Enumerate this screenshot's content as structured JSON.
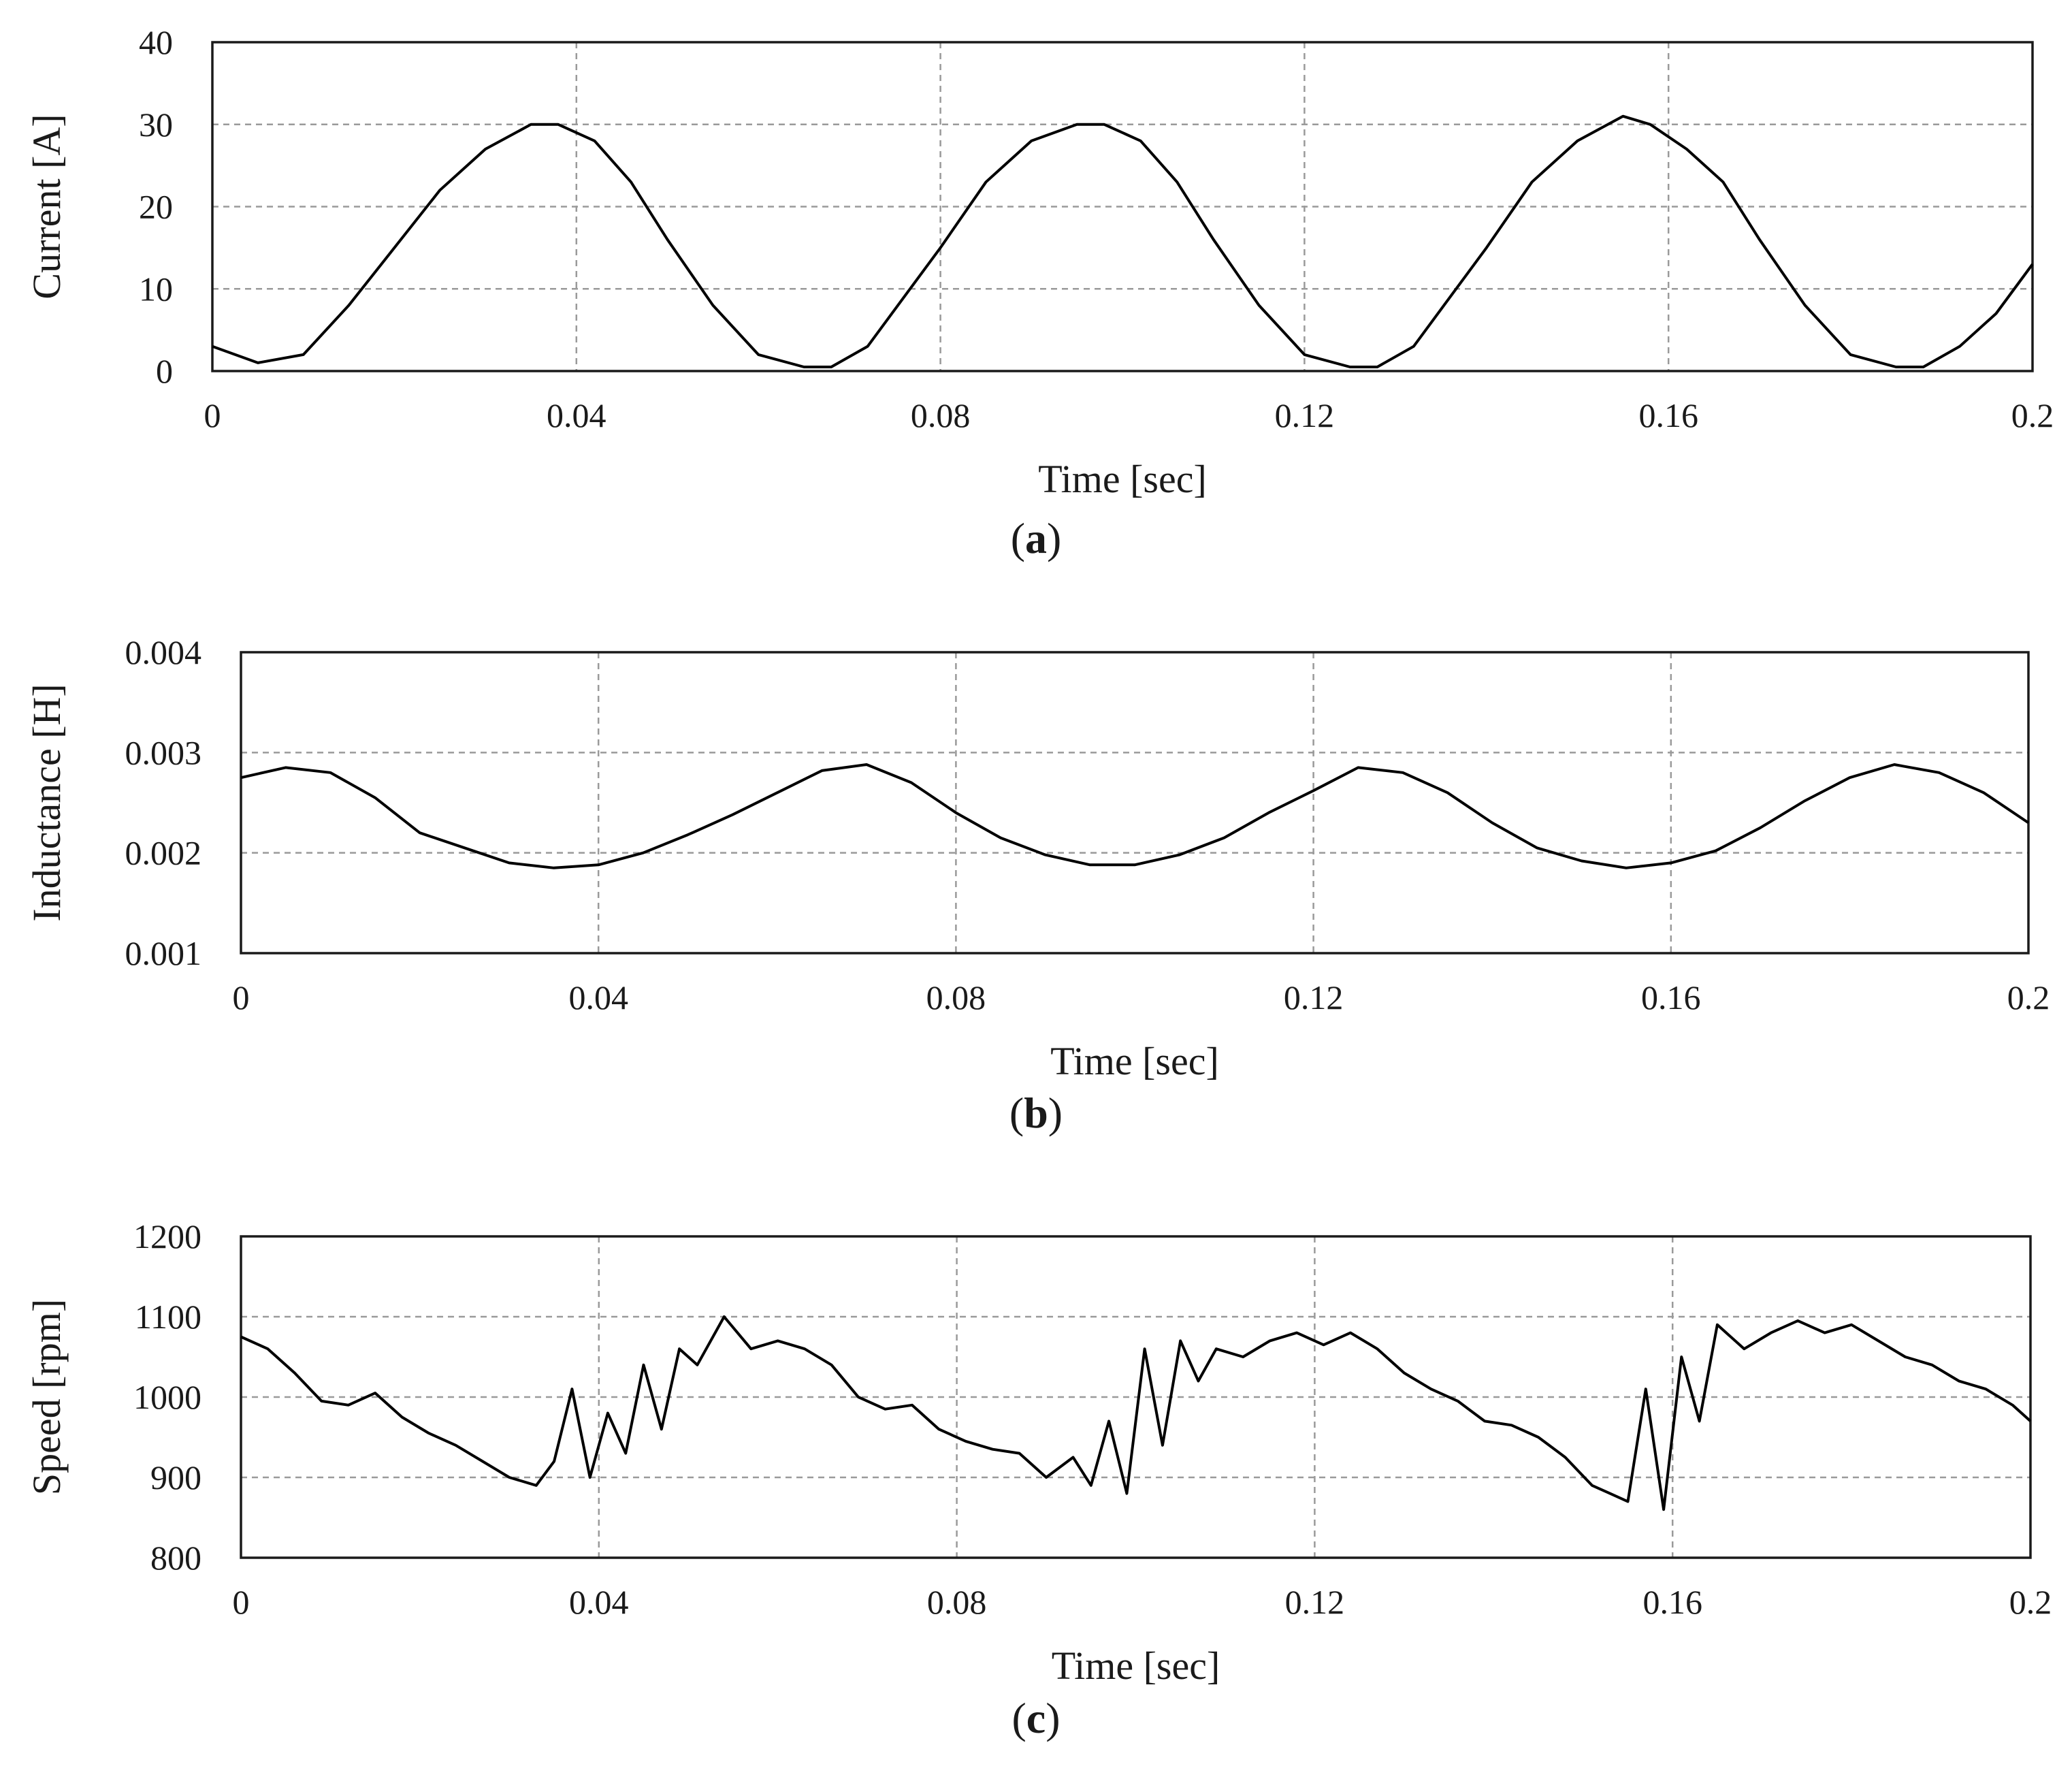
{
  "chart_data": [
    {
      "type": "line",
      "panel": "a",
      "caption_letter": "a",
      "xlabel": "Time [sec]",
      "ylabel": "Current [A]",
      "xlim": [
        0,
        0.2
      ],
      "ylim": [
        0,
        40
      ],
      "xticks": [
        0,
        0.04,
        0.08,
        0.12,
        0.16,
        0.2
      ],
      "xtick_labels": [
        "0",
        "0.04",
        "0.08",
        "0.12",
        "0.16",
        "0.2"
      ],
      "yticks": [
        0,
        10,
        20,
        30,
        40
      ],
      "ytick_labels": [
        "0",
        "10",
        "20",
        "30",
        "40"
      ],
      "grid": true,
      "line_color": "#000000",
      "grid_color": "#9a9a9a",
      "series": [
        {
          "name": "Current",
          "x": [
            0,
            0.005,
            0.01,
            0.015,
            0.02,
            0.025,
            0.03,
            0.035,
            0.038,
            0.042,
            0.046,
            0.05,
            0.055,
            0.06,
            0.065,
            0.068,
            0.072,
            0.076,
            0.08,
            0.085,
            0.09,
            0.095,
            0.098,
            0.102,
            0.106,
            0.11,
            0.115,
            0.12,
            0.125,
            0.128,
            0.132,
            0.136,
            0.14,
            0.145,
            0.15,
            0.155,
            0.158,
            0.162,
            0.166,
            0.17,
            0.175,
            0.18,
            0.185,
            0.188,
            0.192,
            0.196,
            0.2
          ],
          "y": [
            3,
            1,
            2,
            8,
            15,
            22,
            27,
            30,
            30,
            28,
            23,
            16,
            8,
            2,
            0.5,
            0.5,
            3,
            9,
            15,
            23,
            28,
            30,
            30,
            28,
            23,
            16,
            8,
            2,
            0.5,
            0.5,
            3,
            9,
            15,
            23,
            28,
            31,
            30,
            27,
            23,
            16,
            8,
            2,
            0.5,
            0.5,
            3,
            7,
            13
          ]
        }
      ]
    },
    {
      "type": "line",
      "panel": "b",
      "caption_letter": "b",
      "xlabel": "Time [sec]",
      "ylabel": "Inductance [H]",
      "xlim": [
        0,
        0.2
      ],
      "ylim": [
        0.001,
        0.004
      ],
      "xticks": [
        0,
        0.04,
        0.08,
        0.12,
        0.16,
        0.2
      ],
      "xtick_labels": [
        "0",
        "0.04",
        "0.08",
        "0.12",
        "0.16",
        "0.2"
      ],
      "yticks": [
        0.001,
        0.002,
        0.003,
        0.004
      ],
      "ytick_labels": [
        "0.001",
        "0.002",
        "0.003",
        "0.004"
      ],
      "grid": true,
      "line_color": "#000000",
      "grid_color": "#9a9a9a",
      "series": [
        {
          "name": "Inductance",
          "x": [
            0,
            0.005,
            0.01,
            0.015,
            0.02,
            0.025,
            0.03,
            0.035,
            0.04,
            0.045,
            0.05,
            0.055,
            0.06,
            0.065,
            0.07,
            0.075,
            0.08,
            0.085,
            0.09,
            0.095,
            0.1,
            0.105,
            0.11,
            0.115,
            0.12,
            0.125,
            0.13,
            0.135,
            0.14,
            0.145,
            0.15,
            0.155,
            0.16,
            0.165,
            0.17,
            0.175,
            0.18,
            0.185,
            0.19,
            0.195,
            0.2
          ],
          "y": [
            0.00275,
            0.00285,
            0.0028,
            0.00255,
            0.0022,
            0.00205,
            0.0019,
            0.00185,
            0.00188,
            0.002,
            0.00218,
            0.00238,
            0.0026,
            0.00282,
            0.00288,
            0.0027,
            0.0024,
            0.00215,
            0.00198,
            0.00188,
            0.00188,
            0.00198,
            0.00215,
            0.0024,
            0.00262,
            0.00285,
            0.0028,
            0.0026,
            0.0023,
            0.00205,
            0.00192,
            0.00185,
            0.0019,
            0.00202,
            0.00225,
            0.00252,
            0.00275,
            0.00288,
            0.0028,
            0.0026,
            0.0023
          ]
        }
      ]
    },
    {
      "type": "line",
      "panel": "c",
      "caption_letter": "c",
      "xlabel": "Time [sec]",
      "ylabel": "Speed [rpm]",
      "xlim": [
        0,
        0.2
      ],
      "ylim": [
        800,
        1200
      ],
      "xticks": [
        0,
        0.04,
        0.08,
        0.12,
        0.16,
        0.2
      ],
      "xtick_labels": [
        "0",
        "0.04",
        "0.08",
        "0.12",
        "0.16",
        "0.2"
      ],
      "yticks": [
        800,
        900,
        1000,
        1100,
        1200
      ],
      "ytick_labels": [
        "800",
        "900",
        "1000",
        "1100",
        "1200"
      ],
      "grid": true,
      "line_color": "#000000",
      "grid_color": "#9a9a9a",
      "series": [
        {
          "name": "Speed",
          "x": [
            0,
            0.003,
            0.006,
            0.009,
            0.012,
            0.015,
            0.018,
            0.021,
            0.024,
            0.027,
            0.03,
            0.033,
            0.035,
            0.037,
            0.039,
            0.041,
            0.043,
            0.045,
            0.047,
            0.049,
            0.051,
            0.054,
            0.057,
            0.06,
            0.063,
            0.066,
            0.069,
            0.072,
            0.075,
            0.078,
            0.081,
            0.084,
            0.087,
            0.09,
            0.093,
            0.095,
            0.097,
            0.099,
            0.101,
            0.103,
            0.105,
            0.107,
            0.109,
            0.112,
            0.115,
            0.118,
            0.121,
            0.124,
            0.127,
            0.13,
            0.133,
            0.136,
            0.139,
            0.142,
            0.145,
            0.148,
            0.151,
            0.153,
            0.155,
            0.157,
            0.159,
            0.161,
            0.163,
            0.165,
            0.168,
            0.171,
            0.174,
            0.177,
            0.18,
            0.183,
            0.186,
            0.189,
            0.192,
            0.195,
            0.198,
            0.2
          ],
          "y": [
            1075,
            1060,
            1030,
            995,
            990,
            1005,
            975,
            955,
            940,
            920,
            900,
            890,
            920,
            1010,
            900,
            980,
            930,
            1040,
            960,
            1060,
            1040,
            1100,
            1060,
            1070,
            1060,
            1040,
            1000,
            985,
            990,
            960,
            945,
            935,
            930,
            900,
            925,
            890,
            970,
            880,
            1060,
            940,
            1070,
            1020,
            1060,
            1050,
            1070,
            1080,
            1065,
            1080,
            1060,
            1030,
            1010,
            995,
            970,
            965,
            950,
            925,
            890,
            880,
            870,
            1010,
            860,
            1050,
            970,
            1090,
            1060,
            1080,
            1095,
            1080,
            1090,
            1070,
            1050,
            1040,
            1020,
            1010,
            990,
            970
          ]
        }
      ]
    }
  ]
}
